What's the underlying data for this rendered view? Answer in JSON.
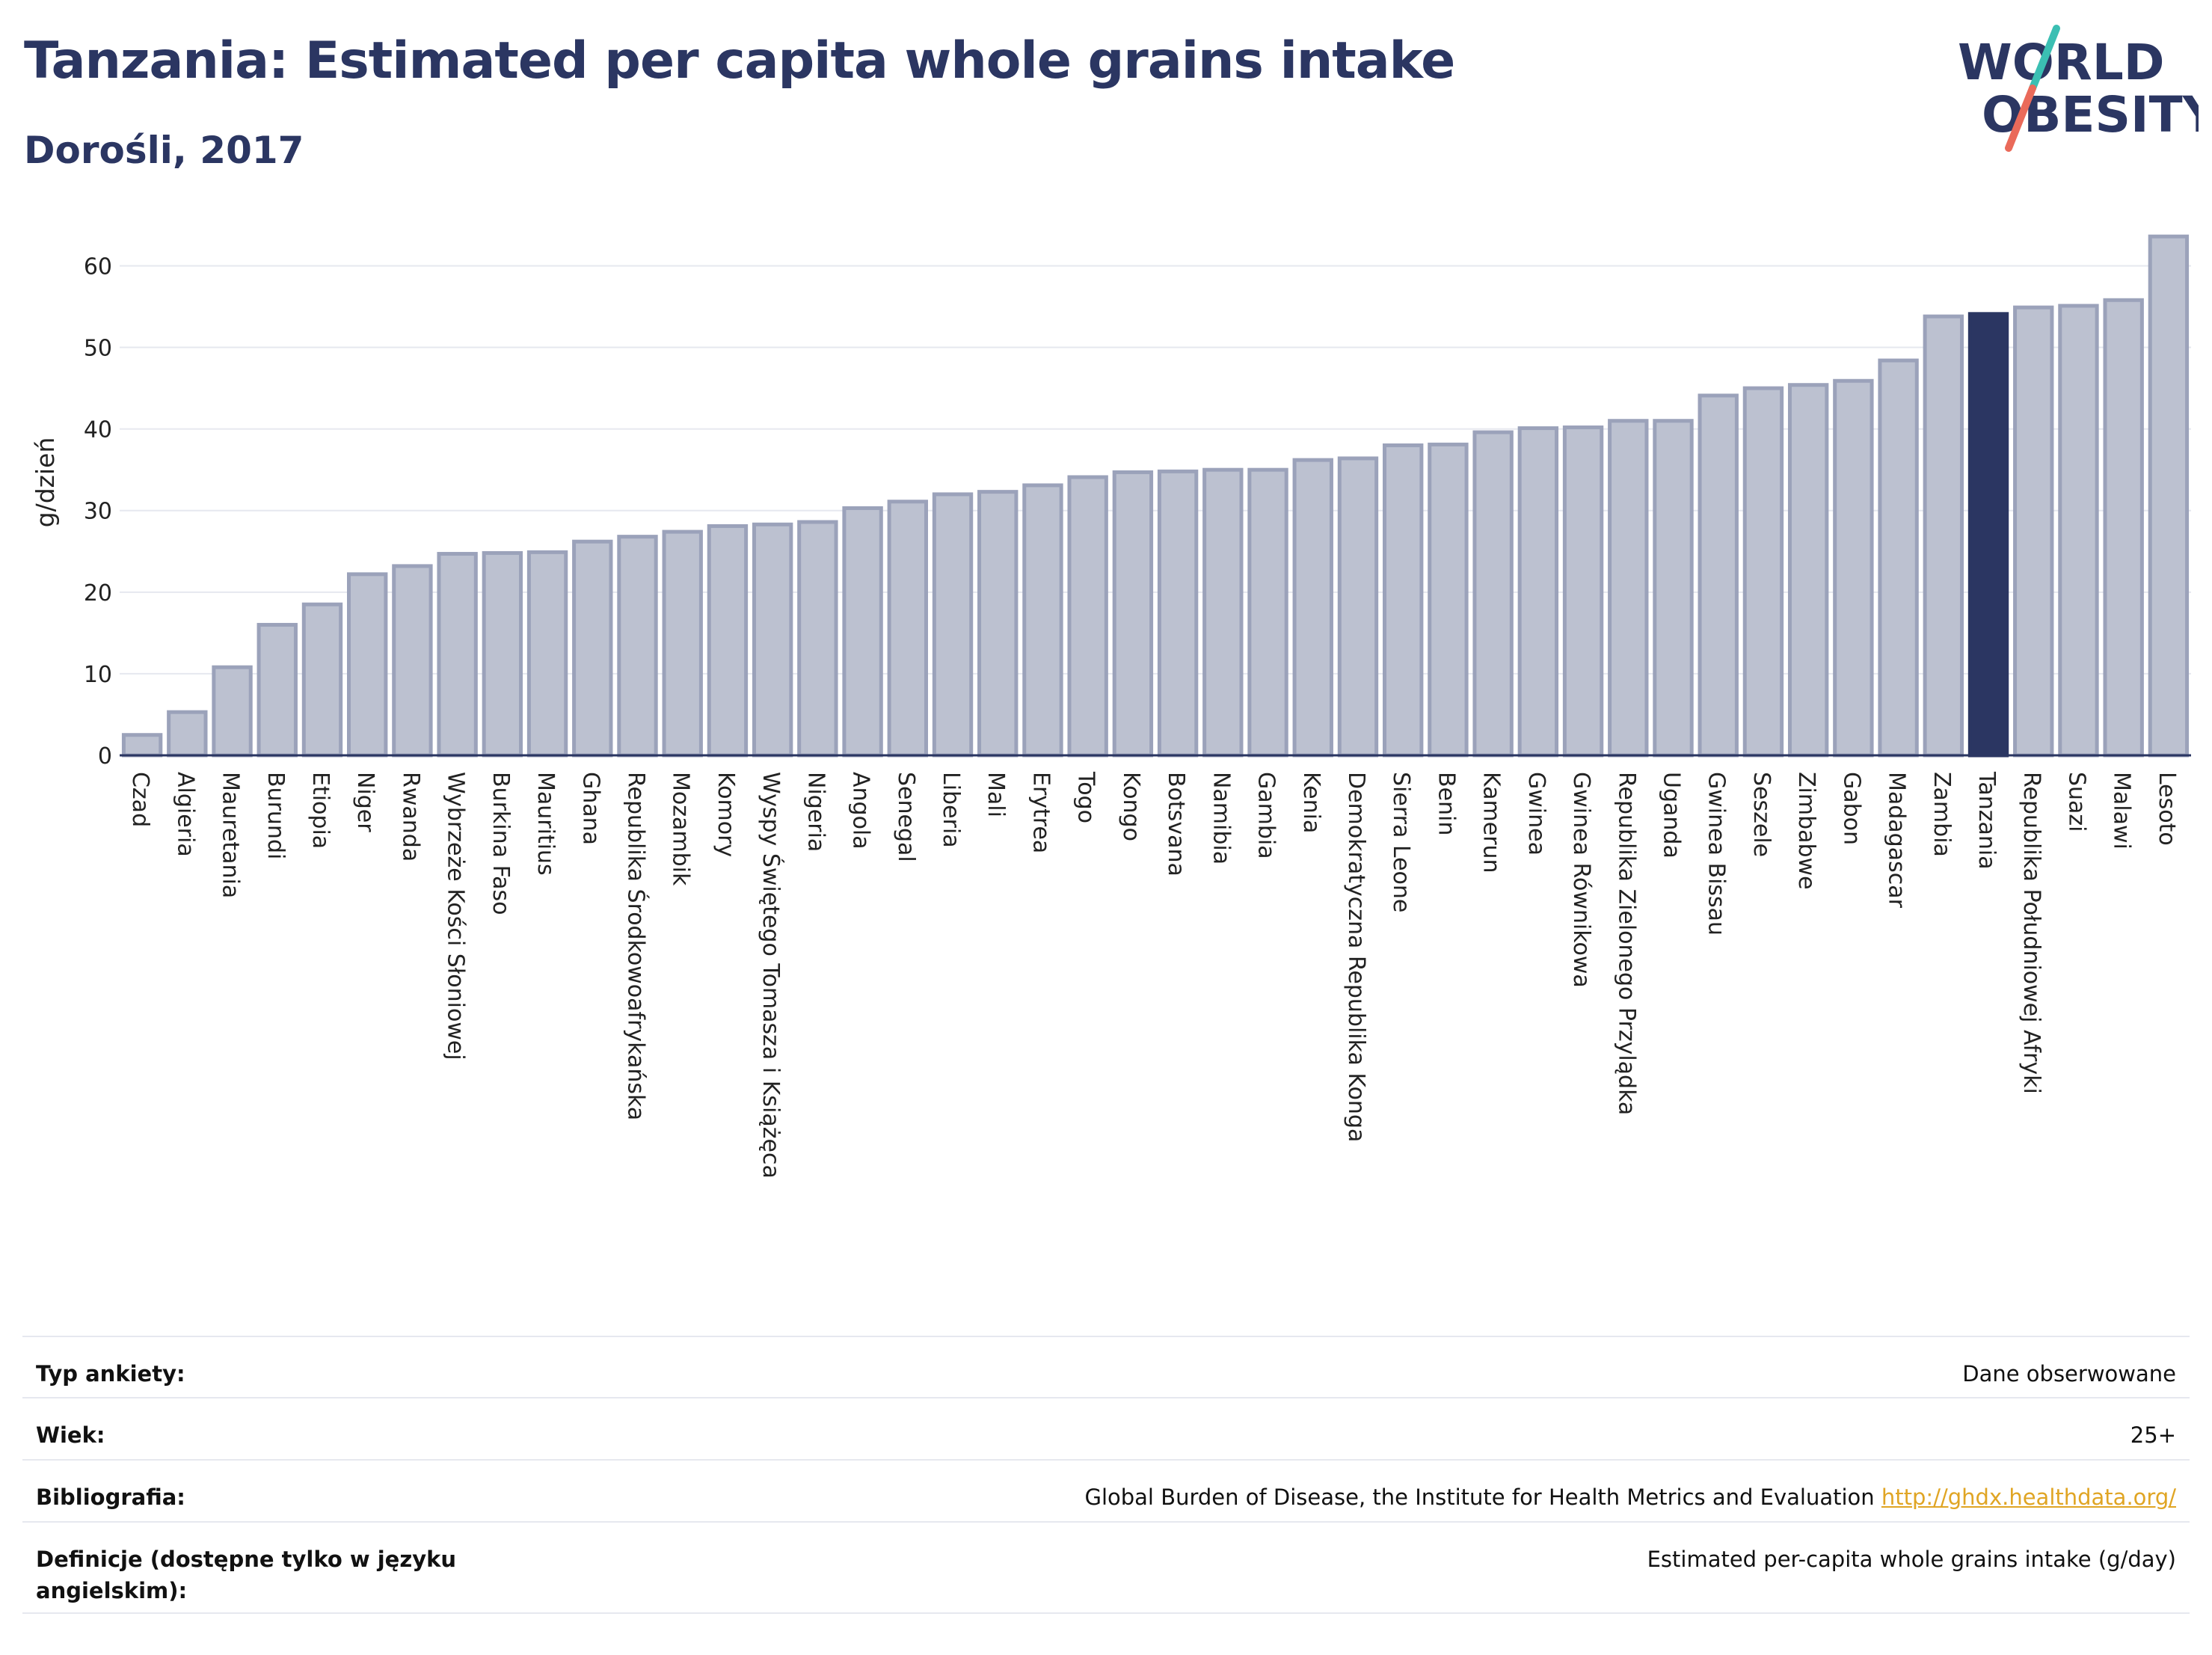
{
  "header": {
    "title": "Tanzania: Estimated per capita whole grains intake",
    "subtitle": "Dorośli, 2017"
  },
  "logo": {
    "line1": "WORLD",
    "line2": "OBESITY",
    "colors": {
      "text": "#2b3662",
      "slash_teal": "#3bbfb3",
      "slash_coral": "#ea6a5a"
    }
  },
  "colors": {
    "bar_fill": "#bcc1d0",
    "bar_stroke": "#9ba2ba",
    "highlight_fill": "#2b3662",
    "highlight_stroke": "#2b3662",
    "grid": "#e6e8ef",
    "axis": "#2b3662"
  },
  "chart_data": {
    "type": "bar",
    "ylabel": "g/dzień",
    "xlabel": "",
    "ylim": [
      0,
      66
    ],
    "yticks": [
      0,
      10,
      20,
      30,
      40,
      50,
      60
    ],
    "grid": true,
    "highlight": "Tanzania",
    "categories": [
      "Czad",
      "Algieria",
      "Mauretania",
      "Burundi",
      "Etiopia",
      "Niger",
      "Rwanda",
      "Wybrzeże Kości Słoniowej",
      "Burkina Faso",
      "Mauritius",
      "Ghana",
      "Republika Środkowoafrykańska",
      "Mozambik",
      "Komory",
      "Wyspy Świętego Tomasza i Książęca",
      "Nigeria",
      "Angola",
      "Senegal",
      "Liberia",
      "Mali",
      "Erytrea",
      "Togo",
      "Kongo",
      "Botsvana",
      "Namibia",
      "Gambia",
      "Kenia",
      "Demokratyczna Republika Konga",
      "Sierra Leone",
      "Benin",
      "Kamerun",
      "Gwinea",
      "Gwinea Równikowa",
      "Republika Zielonego Przylądka",
      "Uganda",
      "Gwinea Bissau",
      "Seszele",
      "Zimbabwe",
      "Gabon",
      "Madagascar",
      "Zambia",
      "Tanzania",
      "Republika Południowej Afryki",
      "Suazi",
      "Malawi",
      "Lesoto"
    ],
    "values": [
      2.5,
      5.3,
      10.8,
      16.0,
      18.5,
      22.2,
      23.2,
      24.7,
      24.8,
      24.9,
      26.2,
      26.8,
      27.4,
      28.1,
      28.3,
      28.6,
      30.3,
      31.1,
      32.0,
      32.3,
      33.1,
      34.1,
      34.7,
      34.8,
      35.0,
      35.0,
      36.2,
      36.4,
      38.0,
      38.1,
      39.6,
      40.1,
      40.2,
      41.0,
      41.0,
      44.1,
      45.0,
      45.4,
      45.9,
      48.4,
      53.8,
      54.1,
      54.9,
      55.1,
      55.8,
      63.6
    ]
  },
  "meta": {
    "rows": [
      {
        "label": "Typ ankiety:",
        "value": "Dane obserwowane"
      },
      {
        "label": "Wiek:",
        "value": "25+"
      },
      {
        "label": "Bibliografia:",
        "value": "Global Burden of Disease, the Institute for Health Metrics and Evaluation",
        "link": "http://ghdx.healthdata.org/"
      },
      {
        "label": "Definicje (dostępne tylko w języku angielskim):",
        "value": "Estimated per-capita whole grains intake (g/day)"
      }
    ]
  }
}
